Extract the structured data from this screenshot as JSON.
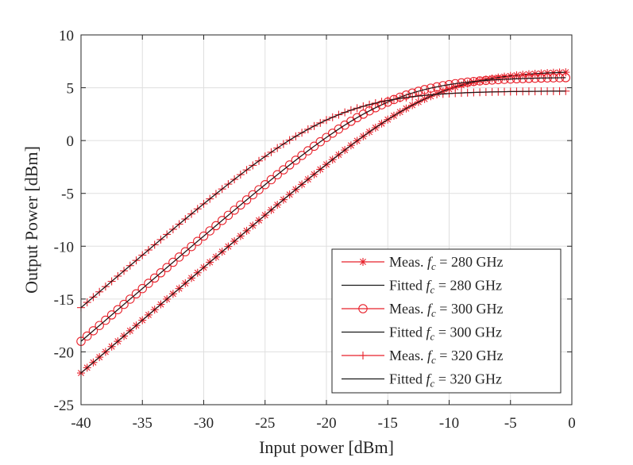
{
  "chart_data": {
    "type": "line",
    "title": "",
    "xlabel": "Input power [dBm]",
    "ylabel": "Output Power [dBm]",
    "xlim": [
      -40,
      0
    ],
    "ylim": [
      -25,
      10
    ],
    "xticks": [
      -40,
      -35,
      -30,
      -25,
      -20,
      -15,
      -10,
      -5,
      0
    ],
    "yticks": [
      -25,
      -20,
      -15,
      -10,
      -5,
      0,
      5,
      10
    ],
    "xtick_labels": [
      "-40",
      "-35",
      "-30",
      "-25",
      "-20",
      "-15",
      "-10",
      "-5",
      "0"
    ],
    "ytick_labels": [
      "-25",
      "-20",
      "-15",
      "-10",
      "-5",
      "0",
      "5",
      "10"
    ],
    "grid": true,
    "legend_position": "bottom-right",
    "x_range": [
      -40,
      -0.5
    ],
    "x_step": 0.5,
    "model": "y = Psat - s*ln(1 + exp((Psat - G - x)/s))",
    "series": [
      {
        "name": "Meas. fc = 280 GHz",
        "legend_prefix": "Meas.",
        "legend_freq": "280 GHz",
        "kind": "measured",
        "marker": "asterisk",
        "color": "#e8212b",
        "gain": 18.0,
        "psat": 6.6,
        "smooth": 3.4
      },
      {
        "name": "Fitted fc = 280 GHz",
        "legend_prefix": "Fitted",
        "legend_freq": "280 GHz",
        "kind": "fitted",
        "marker": "none",
        "color": "#1a1a1a",
        "gain": 18.0,
        "psat": 6.6,
        "smooth": 3.4
      },
      {
        "name": "Meas. fc = 300 GHz",
        "legend_prefix": "Meas.",
        "legend_freq": "300 GHz",
        "kind": "measured",
        "marker": "circle",
        "color": "#e8212b",
        "gain": 21.0,
        "psat": 6.0,
        "smooth": 3.4
      },
      {
        "name": "Fitted fc = 300 GHz",
        "legend_prefix": "Fitted",
        "legend_freq": "300 GHz",
        "kind": "fitted",
        "marker": "none",
        "color": "#1a1a1a",
        "gain": 21.0,
        "psat": 6.0,
        "smooth": 3.4
      },
      {
        "name": "Meas. fc = 320 GHz",
        "legend_prefix": "Meas.",
        "legend_freq": "320 GHz",
        "kind": "measured",
        "marker": "plus",
        "color": "#e8212b",
        "gain": 24.2,
        "psat": 4.7,
        "smooth": 3.6
      },
      {
        "name": "Fitted fc = 320 GHz",
        "legend_prefix": "Fitted",
        "legend_freq": "320 GHz",
        "kind": "fitted",
        "marker": "none",
        "color": "#1a1a1a",
        "gain": 24.2,
        "psat": 4.7,
        "smooth": 3.6
      }
    ]
  }
}
